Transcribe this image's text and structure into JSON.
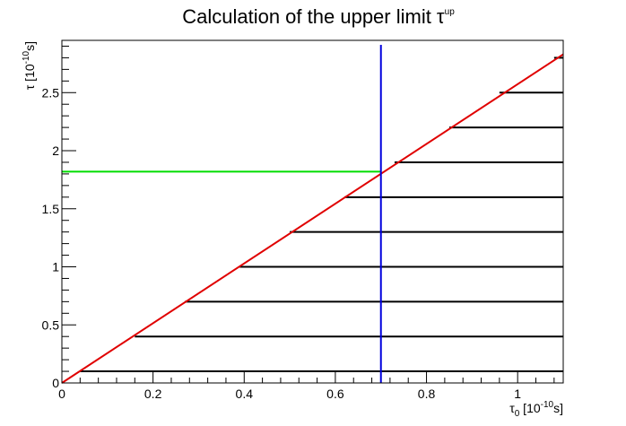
{
  "chart_data": {
    "type": "line",
    "title": {
      "main": "Calculation of the upper limit τ",
      "sup": "up"
    },
    "xlabel": {
      "sym": "τ",
      "sub": "0",
      "unit_open": " [10",
      "exp": "-10",
      "unit_close": "s]"
    },
    "ylabel": {
      "sym": "τ",
      "unit_open": " [10",
      "exp": "-10",
      "unit_close": "s]"
    },
    "xlim": [
      0,
      1.1
    ],
    "ylim": [
      0,
      2.95
    ],
    "x_ticks": [
      {
        "value": 0,
        "label": "0"
      },
      {
        "value": 0.2,
        "label": "0.2"
      },
      {
        "value": 0.4,
        "label": "0.4"
      },
      {
        "value": 0.6,
        "label": "0.6"
      },
      {
        "value": 0.8,
        "label": "0.8"
      },
      {
        "value": 1.0,
        "label": "1"
      }
    ],
    "y_ticks": [
      {
        "value": 0,
        "label": "0"
      },
      {
        "value": 0.5,
        "label": "0.5"
      },
      {
        "value": 1.0,
        "label": "1"
      },
      {
        "value": 1.5,
        "label": "1.5"
      },
      {
        "value": 2.0,
        "label": "2"
      },
      {
        "value": 2.5,
        "label": "2.5"
      }
    ],
    "x_minor_step": 0.04,
    "y_minor_step": 0.1,
    "diagonal": {
      "color": "#e00000",
      "x": [
        0,
        1.1
      ],
      "y": [
        0,
        2.83
      ]
    },
    "steps": {
      "color": "#000000",
      "segments": [
        {
          "y": 0.1,
          "x_start": 0.04
        },
        {
          "y": 0.4,
          "x_start": 0.16
        },
        {
          "y": 0.7,
          "x_start": 0.27
        },
        {
          "y": 1.0,
          "x_start": 0.39
        },
        {
          "y": 1.3,
          "x_start": 0.5
        },
        {
          "y": 1.6,
          "x_start": 0.62
        },
        {
          "y": 1.9,
          "x_start": 0.73
        },
        {
          "y": 2.2,
          "x_start": 0.85
        },
        {
          "y": 2.5,
          "x_start": 0.96
        },
        {
          "y": 2.8,
          "x_start": 1.08
        }
      ]
    },
    "vertical_line": {
      "color": "#0000dd",
      "x": 0.7
    },
    "horizontal_line": {
      "color": "#00dd00",
      "y": 1.82,
      "x_start": 0,
      "x_end": 0.7
    },
    "grid": false,
    "legend": "none"
  }
}
